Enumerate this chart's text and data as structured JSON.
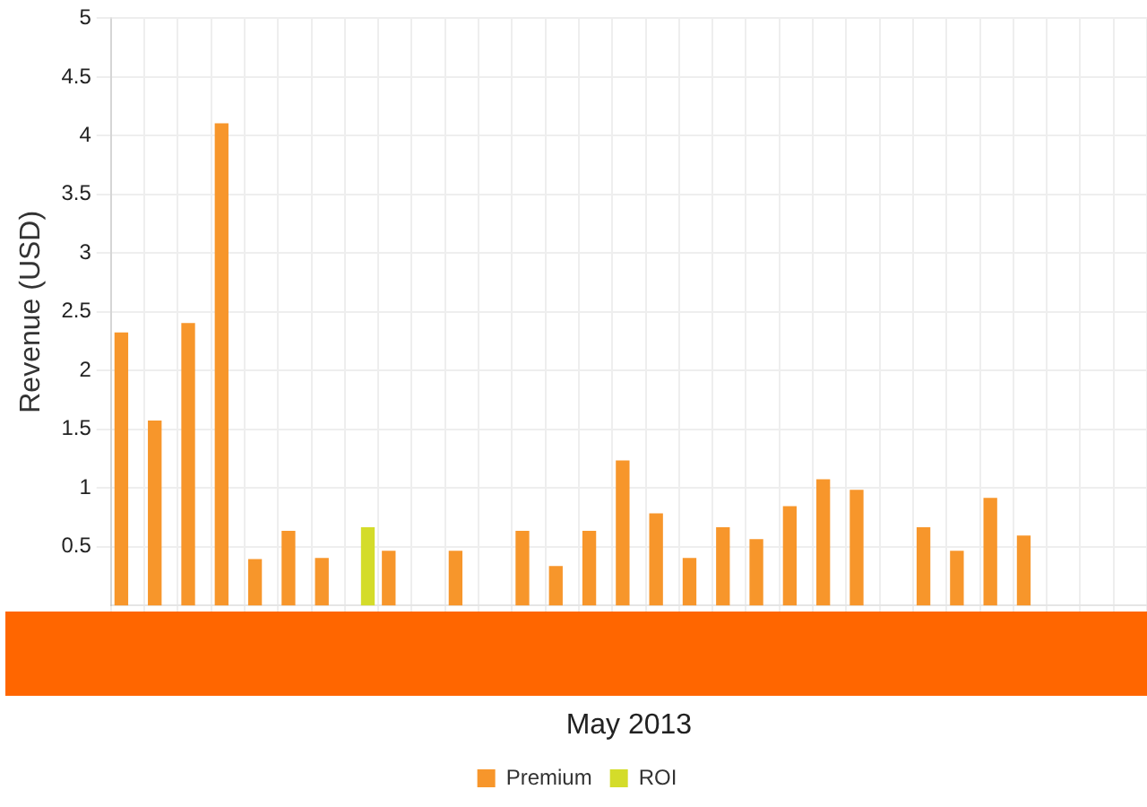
{
  "chart_data": {
    "type": "bar",
    "xlabel": "May 2013",
    "ylabel": "Revenue (USD)",
    "categories": [
      null,
      null,
      null,
      null,
      null,
      null,
      null,
      null,
      null,
      null,
      null,
      null,
      null,
      null,
      null,
      null,
      null,
      null,
      null,
      null,
      null,
      null,
      null,
      null,
      null,
      null,
      null,
      null,
      null,
      null,
      null
    ],
    "series": [
      {
        "name": "Premium",
        "color": "#f7962b",
        "values": [
          2.32,
          1.57,
          2.4,
          4.1,
          0.39,
          0.63,
          0.4,
          null,
          0.46,
          null,
          0.46,
          null,
          0.63,
          0.33,
          0.63,
          1.23,
          0.78,
          0.4,
          0.66,
          0.56,
          0.84,
          1.07,
          0.98,
          null,
          0.66,
          0.46,
          0.91,
          0.59,
          null,
          null,
          null
        ]
      },
      {
        "name": "ROI",
        "color": "#d4dc2a",
        "values": [
          null,
          null,
          null,
          null,
          null,
          null,
          null,
          0.66,
          null,
          null,
          null,
          null,
          null,
          null,
          null,
          null,
          null,
          null,
          null,
          null,
          null,
          null,
          null,
          null,
          null,
          null,
          null,
          null,
          null,
          null,
          null
        ]
      }
    ],
    "ylim": [
      0,
      5
    ],
    "yticks": [
      0.5,
      1,
      1.5,
      2,
      2.5,
      3,
      3.5,
      4,
      4.5,
      5
    ],
    "grid": true,
    "legend": "bottom"
  }
}
